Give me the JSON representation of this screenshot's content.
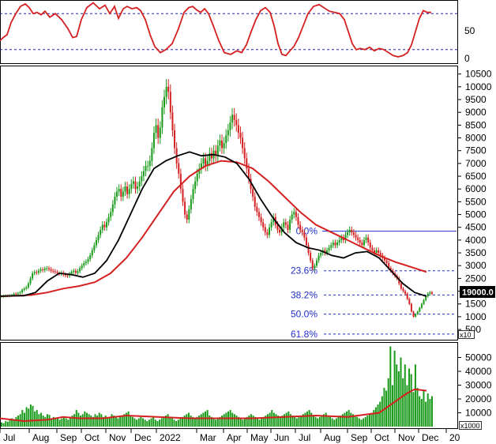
{
  "chart_data": [
    {
      "type": "line",
      "panel": "oscillator",
      "yticks": [
        50,
        0
      ],
      "ylim": [
        0,
        100
      ],
      "reference_levels": [
        80,
        20
      ],
      "colors": {
        "line": "#d42020",
        "reference": "#2222aa"
      },
      "x": [
        0,
        4,
        9,
        14,
        20,
        26,
        32,
        37,
        42,
        47,
        52,
        57,
        63,
        70,
        78,
        86,
        92,
        97,
        103,
        110,
        118,
        126,
        133,
        139,
        145,
        150,
        156,
        161,
        167,
        173,
        178,
        184,
        190,
        196,
        203,
        210,
        218,
        226,
        233,
        239,
        244,
        249,
        254,
        259,
        264,
        270,
        277,
        284,
        292,
        300,
        306,
        312,
        318,
        324,
        330,
        336,
        342,
        347,
        352,
        357,
        362,
        367,
        372,
        378,
        384,
        390,
        397,
        404,
        410,
        417,
        424,
        430,
        436,
        441,
        446,
        451,
        456,
        462,
        468,
        474,
        480,
        486,
        492,
        498,
        504,
        510,
        516,
        521,
        526,
        531,
        536,
        541,
        546
      ],
      "y": [
        35,
        40,
        45,
        65,
        80,
        92,
        96,
        90,
        80,
        82,
        78,
        84,
        74,
        80,
        70,
        55,
        40,
        42,
        70,
        90,
        98,
        88,
        94,
        80,
        92,
        72,
        88,
        92,
        88,
        90,
        85,
        70,
        45,
        25,
        15,
        20,
        30,
        55,
        82,
        90,
        92,
        86,
        82,
        88,
        80,
        60,
        35,
        15,
        12,
        18,
        15,
        28,
        50,
        70,
        85,
        90,
        82,
        60,
        30,
        12,
        10,
        18,
        25,
        40,
        60,
        80,
        92,
        95,
        90,
        84,
        82,
        80,
        70,
        50,
        30,
        20,
        22,
        20,
        24,
        18,
        22,
        20,
        15,
        10,
        8,
        10,
        15,
        28,
        50,
        72,
        85,
        82,
        82
      ]
    },
    {
      "type": "candlestick",
      "panel": "price",
      "yticks": [
        10500,
        10000,
        9500,
        9000,
        8500,
        8000,
        7500,
        7000,
        6500,
        6000,
        5500,
        5000,
        4500,
        4000,
        3500,
        3000,
        2500,
        2000,
        1500,
        1000,
        500
      ],
      "ylim": [
        100,
        10800
      ],
      "colors": {
        "up": "#1a9a1a",
        "down": "#d42020",
        "ma_short": "#000000",
        "ma_long": "#d42020",
        "fib": "#1f2fc8"
      },
      "close": [
        1800,
        1810,
        1820,
        1815,
        1830,
        1840,
        1900,
        1880,
        1920,
        1950,
        2050,
        2100,
        2150,
        2300,
        2500,
        2700,
        2750,
        2720,
        2800,
        2850,
        2820,
        2880,
        2900,
        2860,
        2800,
        2780,
        2750,
        2700,
        2680,
        2720,
        2650,
        2620,
        2600,
        2680,
        2750,
        2800,
        2720,
        2780,
        2900,
        3000,
        3100,
        3150,
        3250,
        3400,
        3600,
        3800,
        4000,
        4200,
        4400,
        4600,
        4500,
        4700,
        4900,
        5100,
        5400,
        5700,
        5900,
        6000,
        5700,
        5900,
        6100,
        5800,
        6000,
        6200,
        6300,
        6000,
        6100,
        6300,
        6500,
        6700,
        6900,
        6900,
        7100,
        7600,
        8200,
        8500,
        8000,
        8400,
        9200,
        9600,
        10000,
        9800,
        9000,
        8300,
        7600,
        7000,
        6600,
        6000,
        5500,
        5000,
        4800,
        5200,
        5600,
        6000,
        6300,
        6600,
        6800,
        7000,
        7200,
        6900,
        7100,
        7400,
        7200,
        7500,
        7300,
        7700,
        7900,
        7600,
        7800,
        8100,
        8300,
        8600,
        8900,
        8700,
        8500,
        8200,
        8000,
        7600,
        7200,
        6800,
        6400,
        6000,
        5700,
        5300,
        5100,
        4900,
        4700,
        4500,
        4300,
        4200,
        4500,
        4700,
        4900,
        4600,
        4400,
        4300,
        4500,
        4700,
        4600,
        4400,
        4800,
        5000,
        5100,
        4900,
        4600,
        4400,
        4300,
        4100,
        3800,
        3500,
        3200,
        2900,
        3000,
        3200,
        3400,
        3500,
        3600,
        3500,
        3600,
        3700,
        3800,
        3900,
        3800,
        3900,
        4000,
        4100,
        4000,
        4200,
        4300,
        4400,
        4300,
        4200,
        4100,
        4000,
        3900,
        3800,
        4000,
        4100,
        3900,
        3700,
        3600,
        3500,
        3600,
        3500,
        3400,
        3300,
        3200,
        3100,
        2900,
        2800,
        2700,
        2600,
        2500,
        2300,
        2100,
        2000,
        1900,
        1700,
        1500,
        1200,
        1000,
        1100,
        1200,
        1350,
        1500,
        1650,
        1800,
        1900,
        1950,
        1900
      ],
      "ma_short": [
        [
          0,
          1800
        ],
        [
          15,
          1820
        ],
        [
          30,
          1820
        ],
        [
          45,
          1950
        ],
        [
          60,
          2400
        ],
        [
          75,
          2700
        ],
        [
          90,
          2650
        ],
        [
          105,
          2550
        ],
        [
          120,
          2700
        ],
        [
          135,
          3200
        ],
        [
          150,
          4000
        ],
        [
          165,
          5000
        ],
        [
          180,
          6000
        ],
        [
          195,
          6800
        ],
        [
          210,
          7100
        ],
        [
          225,
          7300
        ],
        [
          240,
          7450
        ],
        [
          255,
          7300
        ],
        [
          270,
          7350
        ],
        [
          285,
          7250
        ],
        [
          300,
          7000
        ],
        [
          315,
          6400
        ],
        [
          330,
          5600
        ],
        [
          345,
          4900
        ],
        [
          360,
          4300
        ],
        [
          375,
          3900
        ],
        [
          390,
          3700
        ],
        [
          405,
          3600
        ],
        [
          420,
          3400
        ],
        [
          435,
          3300
        ],
        [
          450,
          3500
        ],
        [
          465,
          3550
        ],
        [
          480,
          3300
        ],
        [
          495,
          2800
        ],
        [
          510,
          2300
        ],
        [
          525,
          1950
        ],
        [
          540,
          1800
        ]
      ],
      "ma_long": [
        [
          0,
          1800
        ],
        [
          20,
          1820
        ],
        [
          40,
          1850
        ],
        [
          60,
          1950
        ],
        [
          80,
          2100
        ],
        [
          100,
          2200
        ],
        [
          120,
          2350
        ],
        [
          140,
          2700
        ],
        [
          160,
          3300
        ],
        [
          180,
          4100
        ],
        [
          200,
          5000
        ],
        [
          220,
          5900
        ],
        [
          240,
          6500
        ],
        [
          260,
          6900
        ],
        [
          280,
          7100
        ],
        [
          300,
          7050
        ],
        [
          320,
          6800
        ],
        [
          340,
          6300
        ],
        [
          360,
          5700
        ],
        [
          380,
          5100
        ],
        [
          400,
          4600
        ],
        [
          420,
          4300
        ],
        [
          440,
          4000
        ],
        [
          460,
          3700
        ],
        [
          480,
          3400
        ],
        [
          500,
          3150
        ],
        [
          520,
          2950
        ],
        [
          540,
          2750
        ]
      ],
      "fibonacci": [
        {
          "label": "0.0%",
          "value": 4350
        },
        {
          "label": "23.6%",
          "value": 2800
        },
        {
          "label": "38.2%",
          "value": 1850
        },
        {
          "label": "50.0%",
          "value": 1100
        },
        {
          "label": "61.8%",
          "value": 320
        }
      ],
      "last_value_label": "19000.0",
      "unit_label": "x10"
    },
    {
      "type": "bar",
      "panel": "volume",
      "yticks": [
        50000,
        40000,
        30000,
        20000,
        10000
      ],
      "ylim": [
        0,
        60000
      ],
      "colors": {
        "bar": "#1a9a1a",
        "ma": "#d42020"
      },
      "values": [
        3000,
        2500,
        4000,
        3500,
        5000,
        6000,
        4500,
        7000,
        8000,
        9000,
        12000,
        10000,
        14000,
        13000,
        16000,
        15000,
        11000,
        12000,
        9000,
        10000,
        8000,
        7000,
        9000,
        8500,
        6000,
        7000,
        5500,
        6500,
        5000,
        6000,
        7500,
        6000,
        5000,
        7000,
        8000,
        9000,
        12000,
        10000,
        8000,
        9000,
        11000,
        10000,
        9000,
        8000,
        7000,
        9000,
        8000,
        10000,
        9000,
        7000,
        8000,
        6000,
        7000,
        9000,
        8000,
        7000,
        6000,
        7000,
        8000,
        9000,
        10000,
        11000,
        8000,
        7000,
        6000,
        5000,
        6000,
        7000,
        6000,
        5000,
        4000,
        5000,
        6000,
        7000,
        5000,
        4000,
        5000,
        6000,
        7000,
        8000,
        9000,
        7000,
        6000,
        5000,
        4000,
        5000,
        6000,
        7000,
        8000,
        9000,
        10000,
        8000,
        7000,
        6000,
        7000,
        8000,
        9000,
        10000,
        11000,
        12000,
        8000,
        7000,
        6000,
        5000,
        6000,
        7000,
        8000,
        9000,
        10000,
        11000,
        12000,
        10000,
        9000,
        8000,
        7000,
        6000,
        5000,
        6000,
        7000,
        8000,
        9000,
        8000,
        7000,
        6000,
        5000,
        6000,
        7000,
        8000,
        9000,
        10000,
        12000,
        10000,
        9000,
        8000,
        7000,
        8000,
        9000,
        10000,
        11000,
        9000,
        8000,
        7000,
        6000,
        7000,
        8000,
        9000,
        10000,
        11000,
        12000,
        10000,
        8000,
        7000,
        6000,
        7000,
        8000,
        9000,
        10000,
        8000,
        7000,
        6000,
        5000,
        6000,
        7000,
        8000,
        9000,
        10000,
        11000,
        12000,
        10000,
        9000,
        8000,
        7000,
        6000,
        5000,
        6000,
        7000,
        8000,
        9000,
        10000,
        12000,
        14000,
        16000,
        18000,
        22000,
        28000,
        26000,
        35000,
        58000,
        30000,
        55000,
        45000,
        40000,
        50000,
        35000,
        45000,
        30000,
        42000,
        38000,
        25000,
        45000,
        28000,
        22000,
        20000,
        26000,
        18000,
        24000,
        20000,
        22000
      ],
      "ma": [
        [
          0,
          6000
        ],
        [
          30,
          4000
        ],
        [
          60,
          5000
        ],
        [
          80,
          7000
        ],
        [
          100,
          6000
        ],
        [
          130,
          6000
        ],
        [
          160,
          8000
        ],
        [
          200,
          7000
        ],
        [
          240,
          6000
        ],
        [
          280,
          6000
        ],
        [
          320,
          6000
        ],
        [
          360,
          7000
        ],
        [
          400,
          8000
        ],
        [
          440,
          7000
        ],
        [
          480,
          10000
        ],
        [
          500,
          18000
        ],
        [
          515,
          24000
        ],
        [
          525,
          27000
        ],
        [
          540,
          26000
        ]
      ]
    },
    {
      "type": "axis",
      "panel": "time",
      "ticks": [
        "Jul",
        "Aug",
        "Sep",
        "Oct",
        "Nov",
        "Dec",
        "2022",
        "Mar",
        "Apr",
        "May",
        "Jun",
        "Jul",
        "Aug",
        "Sep",
        "Oct",
        "Nov",
        "Dec",
        "20"
      ],
      "unit_label": "x1000"
    }
  ]
}
